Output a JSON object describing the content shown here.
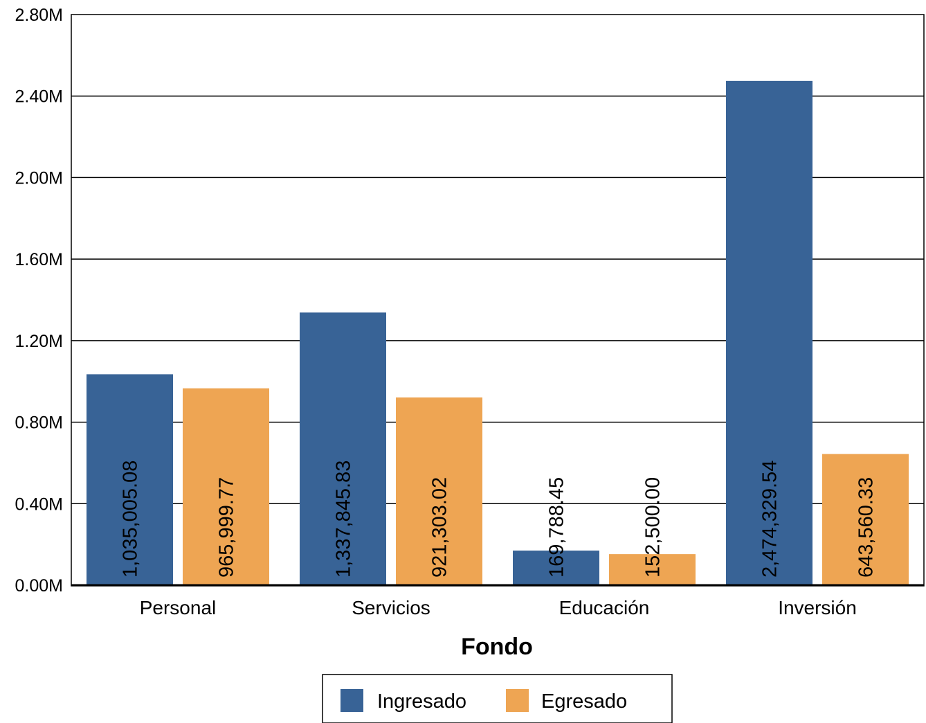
{
  "chart_data": {
    "type": "bar",
    "title": "",
    "xlabel": "Fondo",
    "ylabel": "",
    "categories": [
      "Personal",
      "Servicios",
      "Educación",
      "Inversión"
    ],
    "series": [
      {
        "name": "Ingresado",
        "color": "#386396",
        "values": [
          1035005.08,
          1337845.83,
          169788.45,
          2474329.54
        ],
        "labels": [
          "1,035,005.08",
          "1,337,845.83",
          "169,788.45",
          "2,474,329.54"
        ]
      },
      {
        "name": "Egresado",
        "color": "#EEA553",
        "values": [
          965999.77,
          921303.02,
          152500.0,
          643560.33
        ],
        "labels": [
          "965,999.77",
          "921,303.02",
          "152,500.00",
          "643,560.33"
        ]
      }
    ],
    "ylim": [
      0,
      2800000
    ],
    "yticks": [
      0,
      400000,
      800000,
      1200000,
      1600000,
      2000000,
      2400000,
      2800000
    ],
    "ytick_labels": [
      "0.00M",
      "0.40M",
      "0.80M",
      "1.20M",
      "1.60M",
      "2.00M",
      "2.40M",
      "2.80M"
    ],
    "grid": true,
    "legend_position": "bottom"
  }
}
